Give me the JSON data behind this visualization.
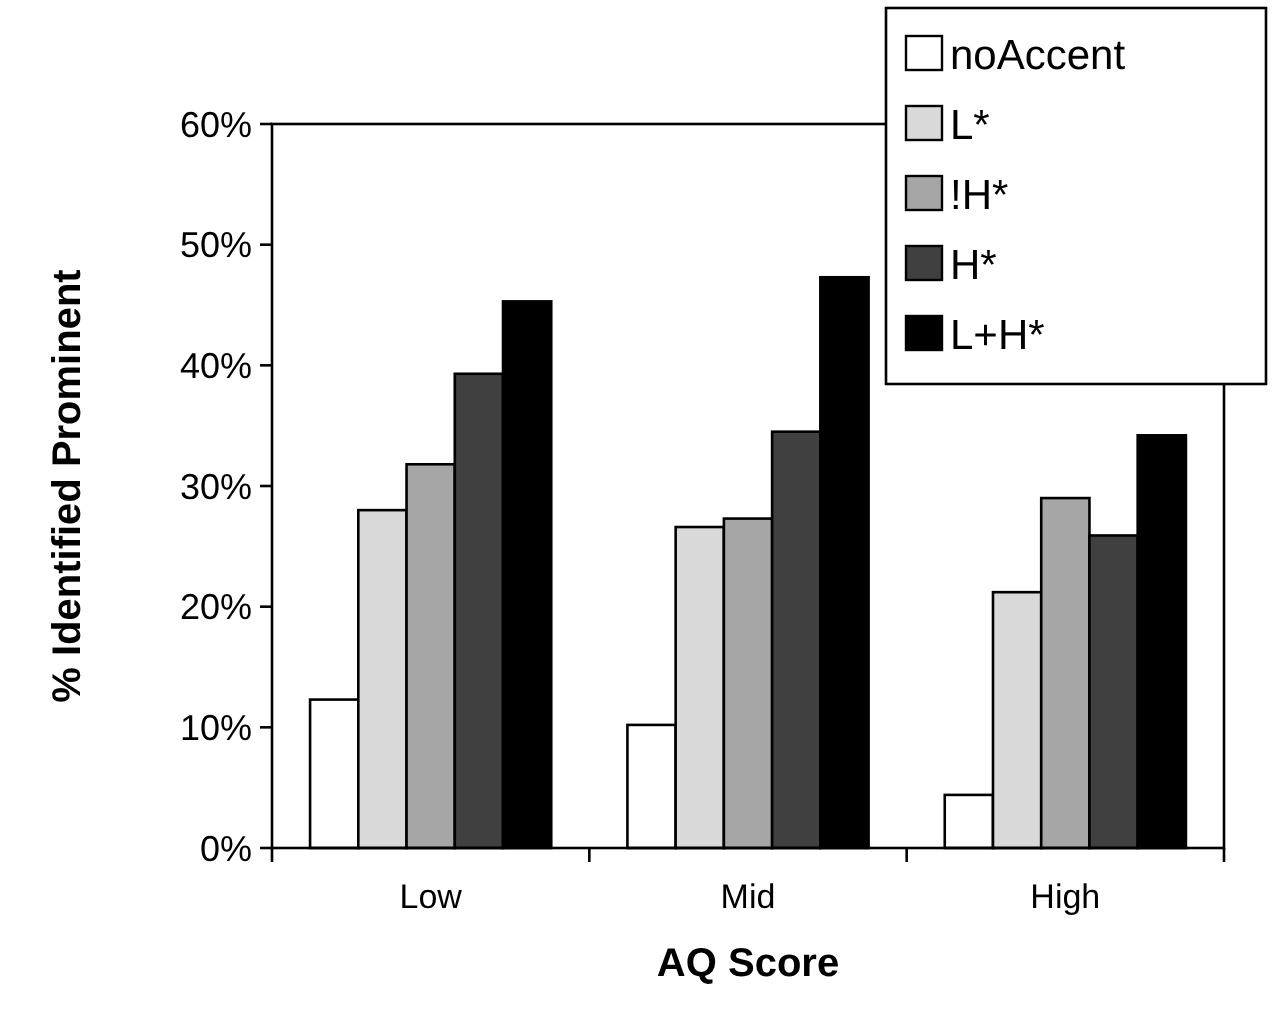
{
  "chart_data": {
    "type": "bar",
    "xlabel": "AQ Score",
    "ylabel": "% Identified Prominent",
    "categories": [
      "Low",
      "Mid",
      "High"
    ],
    "series": [
      {
        "name": "noAccent",
        "color": "#ffffff",
        "values": [
          12.3,
          10.2,
          4.4
        ]
      },
      {
        "name": "L*",
        "color": "#d9d9d9",
        "values": [
          28,
          26.6,
          21.2
        ]
      },
      {
        "name": "!H*",
        "color": "#a6a6a6",
        "values": [
          31.8,
          27.3,
          29
        ]
      },
      {
        "name": "H*",
        "color": "#404040",
        "values": [
          39.3,
          34.5,
          25.9
        ]
      },
      {
        "name": "L+H*",
        "color": "#000000",
        "values": [
          45.3,
          47.3,
          34.2
        ]
      }
    ],
    "ylim": [
      0,
      60
    ],
    "yticks": [
      {
        "value": 0,
        "label": "0%"
      },
      {
        "value": 10,
        "label": "10%"
      },
      {
        "value": 20,
        "label": "20%"
      },
      {
        "value": 30,
        "label": "30%"
      },
      {
        "value": 40,
        "label": "40%"
      },
      {
        "value": 50,
        "label": "50%"
      },
      {
        "value": 60,
        "label": "60%"
      }
    ],
    "grid": false,
    "legend": "top right"
  }
}
